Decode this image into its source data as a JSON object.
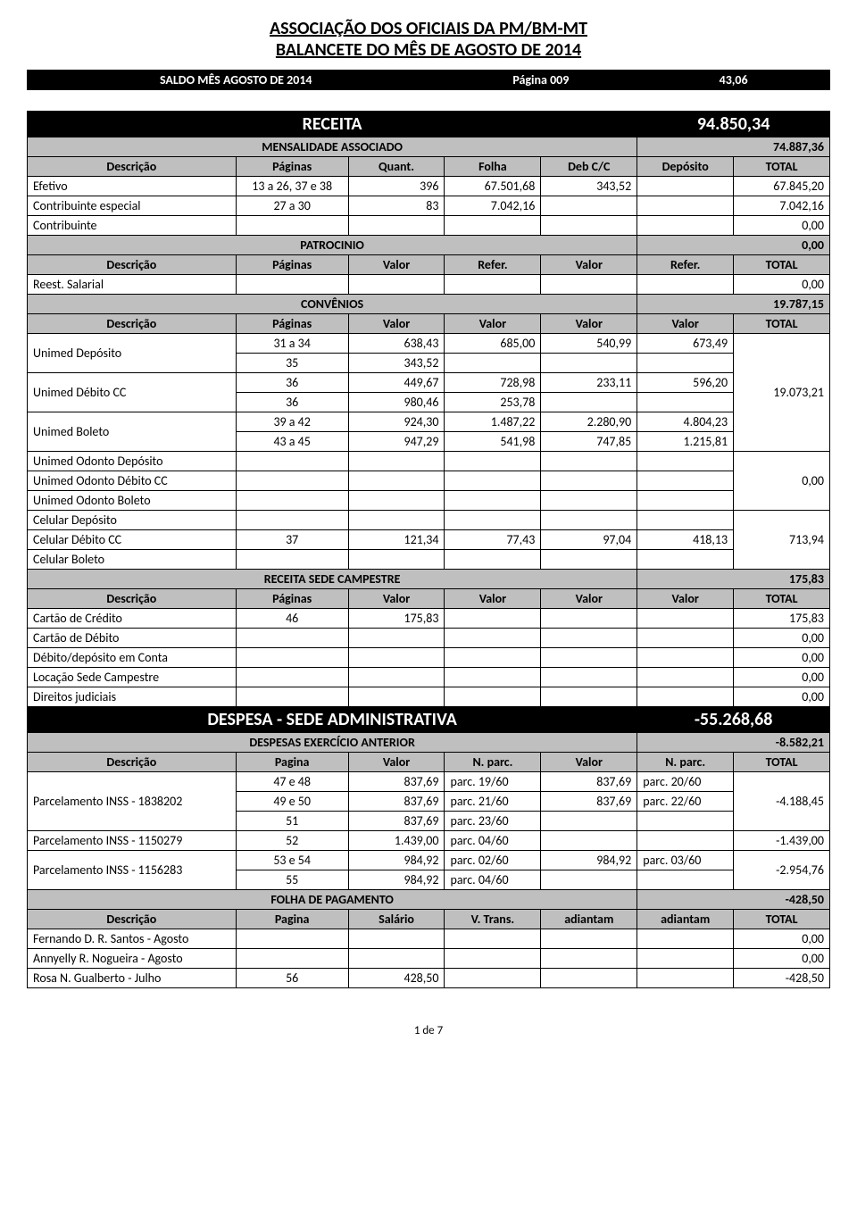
{
  "header": {
    "line1": "ASSOCIAÇÃO DOS OFICIAIS DA PM/BM-MT",
    "line2": "BALANCETE DO MÊS DE AGOSTO DE 2014"
  },
  "saldo": {
    "label": "SALDO MÊS AGOSTO DE 2014",
    "pagina_label": "Página 009",
    "valor": "43,06"
  },
  "receita": {
    "title": "RECEITA",
    "total": "94.850,34",
    "mensalidade": {
      "label": "MENSALIDADE ASSOCIADO",
      "valor": "74.887,36"
    },
    "mensalidade_header": [
      "Descrição",
      "Páginas",
      "Quant.",
      "Folha",
      "Deb C/C",
      "Depósito",
      "TOTAL"
    ],
    "mensalidade_rows": [
      [
        "Efetivo",
        "13 a 26, 37 e 38",
        "396",
        "67.501,68",
        "343,52",
        "",
        "67.845,20"
      ],
      [
        "Contribuinte especial",
        "27 a 30",
        "83",
        "7.042,16",
        "",
        "",
        "7.042,16"
      ],
      [
        "Contribuinte",
        "",
        "",
        "",
        "",
        "",
        "0,00"
      ]
    ],
    "patrocinio": {
      "label": "PATROCINIO",
      "valor": "0,00"
    },
    "patrocinio_header": [
      "Descrição",
      "Páginas",
      "Valor",
      "Refer.",
      "Valor",
      "Refer.",
      "TOTAL"
    ],
    "patrocinio_rows": [
      [
        "Reest. Salarial",
        "",
        "",
        "",
        "",
        "",
        "0,00"
      ]
    ],
    "convenios": {
      "label": "CONVÊNIOS",
      "valor": "19.787,15"
    },
    "convenios_header": [
      "Descrição",
      "Páginas",
      "Valor",
      "Valor",
      "Valor",
      "Valor",
      "TOTAL"
    ],
    "unimed_deposito": {
      "label": "Unimed Depósito",
      "r1": [
        "31 a 34",
        "638,43",
        "685,00",
        "540,99",
        "673,49"
      ],
      "r2": [
        "35",
        "343,52",
        "",
        "",
        ""
      ]
    },
    "unimed_debito_cc": {
      "label": "Unimed Débito CC",
      "r1": [
        "36",
        "449,67",
        "728,98",
        "233,11",
        "596,20"
      ],
      "r2": [
        "36",
        "980,46",
        "253,78",
        "",
        ""
      ]
    },
    "unimed_boleto": {
      "label": "Unimed Boleto",
      "r1": [
        "39 a 42",
        "924,30",
        "1.487,22",
        "2.280,90",
        "4.804,23"
      ],
      "r2": [
        "43 a 45",
        "947,29",
        "541,98",
        "747,85",
        "1.215,81"
      ]
    },
    "unimed_total": "19.073,21",
    "odonto_rows": [
      "Unimed Odonto Depósito",
      "Unimed Odonto Débito CC",
      "Unimed Odonto Boleto"
    ],
    "odonto_total": "0,00",
    "celular_deposito": "Celular Depósito",
    "celular_debito": {
      "label": "Celular Débito CC",
      "pag": "37",
      "v1": "121,34",
      "v2": "77,43",
      "v3": "97,04",
      "v4": "418,13"
    },
    "celular_boleto": "Celular Boleto",
    "celular_total": "713,94",
    "sede_campestre": {
      "label": "RECEITA SEDE CAMPESTRE",
      "valor": "175,83"
    },
    "sede_header": [
      "Descrição",
      "Páginas",
      "Valor",
      "Valor",
      "Valor",
      "Valor",
      "TOTAL"
    ],
    "sede_rows": [
      [
        "Cartão de Crédito",
        "46",
        "175,83",
        "",
        "",
        "",
        "175,83"
      ],
      [
        "Cartão de Débito",
        "",
        "",
        "",
        "",
        "",
        "0,00"
      ],
      [
        "Débito/depósito em Conta",
        "",
        "",
        "",
        "",
        "",
        "0,00"
      ],
      [
        "Locação Sede Campestre",
        "",
        "",
        "",
        "",
        "",
        "0,00"
      ],
      [
        "Direitos judiciais",
        "",
        "",
        "",
        "",
        "",
        "0,00"
      ]
    ]
  },
  "despesa": {
    "title": "DESPESA - SEDE ADMINISTRATIVA",
    "total": "-55.268,68",
    "exercicio": {
      "label": "DESPESAS EXERCÍCIO ANTERIOR",
      "valor": "-8.582,21"
    },
    "exercicio_header": [
      "Descrição",
      "Pagina",
      "Valor",
      "N. parc.",
      "Valor",
      "N. parc.",
      "TOTAL"
    ],
    "inss1838202": {
      "label": "Parcelamento INSS - 1838202",
      "r1": [
        "47 e 48",
        "837,69",
        "parc. 19/60",
        "837,69",
        "parc. 20/60"
      ],
      "r2": [
        "49 e 50",
        "837,69",
        "parc. 21/60",
        "837,69",
        "parc. 22/60"
      ],
      "r3": [
        "51",
        "837,69",
        "parc. 23/60",
        "",
        ""
      ],
      "total": "-4.188,45"
    },
    "inss1150279": [
      "Parcelamento INSS - 1150279",
      "52",
      "1.439,00",
      "parc. 04/60",
      "",
      "",
      "-1.439,00"
    ],
    "inss1156283": {
      "label": "Parcelamento INSS - 1156283",
      "r1": [
        "53 e 54",
        "984,92",
        "parc. 02/60",
        "984,92",
        "parc. 03/60"
      ],
      "r2": [
        "55",
        "984,92",
        "parc. 04/60",
        "",
        ""
      ],
      "total": "-2.954,76"
    },
    "folha": {
      "label": "FOLHA DE PAGAMENTO",
      "valor": "-428,50"
    },
    "folha_header": [
      "Descrição",
      "Pagina",
      "Salário",
      "V. Trans.",
      "adiantam",
      "adiantam",
      "TOTAL"
    ],
    "folha_rows": [
      [
        "Fernando D. R. Santos - Agosto",
        "",
        "",
        "",
        "",
        "",
        "0,00"
      ],
      [
        "Annyelly R. Nogueira - Agosto",
        "",
        "",
        "",
        "",
        "",
        "0,00"
      ],
      [
        "Rosa N. Gualberto - Julho",
        "56",
        "428,50",
        "",
        "",
        "",
        "-428,50"
      ]
    ]
  },
  "footer": "1 de 7"
}
